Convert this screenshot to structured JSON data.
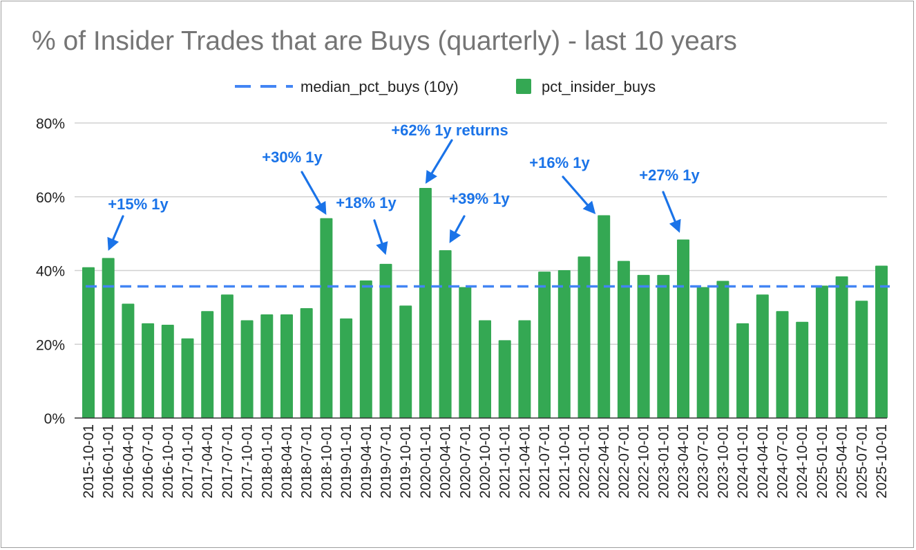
{
  "chart_data": {
    "type": "bar",
    "title": "% of Insider Trades that are Buys (quarterly) - last 10 years",
    "xlabel": "",
    "ylabel": "",
    "ylim": [
      0,
      80
    ],
    "y_ticks": [
      "0%",
      "20%",
      "40%",
      "60%",
      "80%"
    ],
    "legend": {
      "position": "top",
      "entries": [
        {
          "label": "median_pct_buys (10y)",
          "style": "dashed-line",
          "color": "#4285f4"
        },
        {
          "label": "pct_insider_buys",
          "style": "box",
          "color": "#34a853"
        }
      ]
    },
    "categories": [
      "2015-10-01",
      "2016-01-01",
      "2016-04-01",
      "2016-07-01",
      "2016-10-01",
      "2017-01-01",
      "2017-04-01",
      "2017-07-01",
      "2017-10-01",
      "2018-01-01",
      "2018-04-01",
      "2018-07-01",
      "2018-10-01",
      "2019-01-01",
      "2019-04-01",
      "2019-07-01",
      "2019-10-01",
      "2020-01-01",
      "2020-04-01",
      "2020-07-01",
      "2020-10-01",
      "2021-01-01",
      "2021-04-01",
      "2021-07-01",
      "2021-10-01",
      "2022-01-01",
      "2022-04-01",
      "2022-07-01",
      "2022-10-01",
      "2023-01-01",
      "2023-04-01",
      "2023-07-01",
      "2023-10-01",
      "2024-01-01",
      "2024-04-01",
      "2024-07-01",
      "2024-10-01",
      "2025-01-01",
      "2025-04-01",
      "2025-07-01",
      "2025-10-01"
    ],
    "series": [
      {
        "name": "pct_insider_buys",
        "type": "bar",
        "color": "#34a853",
        "values": [
          40.9,
          43.4,
          31.0,
          25.7,
          25.3,
          21.6,
          29.0,
          33.5,
          26.5,
          28.1,
          28.1,
          29.8,
          54.2,
          27.0,
          37.3,
          41.8,
          30.5,
          62.4,
          45.5,
          35.5,
          26.5,
          21.1,
          26.5,
          39.7,
          40.1,
          43.8,
          55.0,
          42.6,
          38.8,
          38.8,
          48.4,
          35.5,
          37.2,
          25.7,
          33.5,
          29.0,
          26.1,
          35.9,
          38.4,
          31.8,
          41.3
        ]
      },
      {
        "name": "median_pct_buys (10y)",
        "type": "line",
        "style": "dashed",
        "color": "#4285f4",
        "value": 35.7
      }
    ],
    "annotations": [
      {
        "text": "+15% 1y",
        "category": "2016-01-01"
      },
      {
        "text": "+30% 1y",
        "category": "2018-10-01"
      },
      {
        "text": "+18% 1y",
        "category": "2019-07-01"
      },
      {
        "text": "+62% 1y returns",
        "category": "2020-01-01"
      },
      {
        "text": "+39% 1y",
        "category": "2020-04-01"
      },
      {
        "text": "+16% 1y",
        "category": "2022-04-01"
      },
      {
        "text": "+27% 1y",
        "category": "2023-04-01"
      }
    ]
  }
}
